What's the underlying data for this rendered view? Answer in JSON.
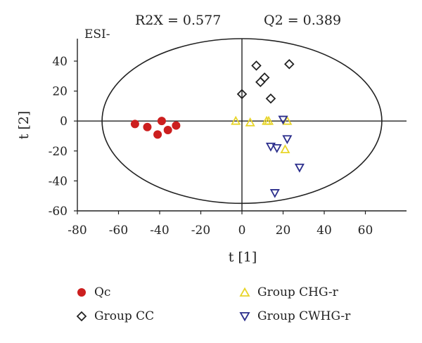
{
  "chart_data": {
    "type": "scatter",
    "title": "",
    "stats": {
      "r2x": "R2X = 0.577",
      "q2": "Q2 = 0.389"
    },
    "mode_label": "ESI-",
    "xlabel": "t [1]",
    "ylabel": "t [2]",
    "xlim": [
      -80,
      80
    ],
    "ylim": [
      -60,
      55
    ],
    "x_ticks": [
      -80,
      -60,
      -40,
      -20,
      0,
      20,
      40,
      60
    ],
    "y_ticks": [
      40,
      20,
      0,
      -20,
      -40,
      -60
    ],
    "ellipse": {
      "cx": 0,
      "cy": 0,
      "rx": 68,
      "ry": 55
    },
    "legend_position": "bottom",
    "series": [
      {
        "name": "Qc",
        "marker": "circle",
        "color": "#cc1f1f",
        "points": [
          [
            -52,
            -2
          ],
          [
            -46,
            -4
          ],
          [
            -41,
            -9
          ],
          [
            -39,
            0
          ],
          [
            -36,
            -6
          ],
          [
            -32,
            -3
          ]
        ]
      },
      {
        "name": "Group CC",
        "marker": "diamond",
        "color": "#222222",
        "points": [
          [
            0,
            18
          ],
          [
            7,
            37
          ],
          [
            9,
            26
          ],
          [
            11,
            29
          ],
          [
            14,
            15
          ],
          [
            23,
            38
          ]
        ]
      },
      {
        "name": "Group CHG-r",
        "marker": "triangle-up",
        "color": "#e8d52a",
        "points": [
          [
            -3,
            0
          ],
          [
            4,
            -1
          ],
          [
            12,
            0
          ],
          [
            13,
            0
          ],
          [
            21,
            -19
          ],
          [
            22,
            0
          ]
        ]
      },
      {
        "name": "Group CWHG-r",
        "marker": "triangle-down",
        "color": "#2b2e8c",
        "points": [
          [
            14,
            -17
          ],
          [
            17,
            -18
          ],
          [
            16,
            -48
          ],
          [
            20,
            1
          ],
          [
            22,
            -12
          ],
          [
            28,
            -31
          ]
        ]
      }
    ]
  }
}
